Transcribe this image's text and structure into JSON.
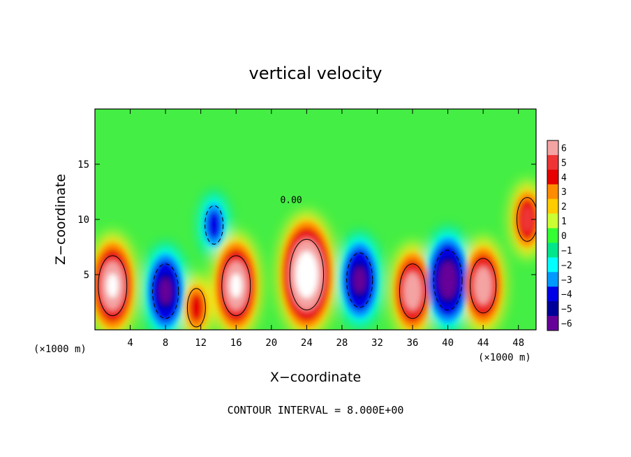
{
  "chart_data": {
    "type": "heatmap",
    "title": "vertical velocity",
    "xlabel": "X−coordinate",
    "ylabel": "Z−coordinate",
    "x_unit_left": "(×1000 m)",
    "x_unit_right": "(×1000 m)",
    "xlim": [
      0,
      50
    ],
    "ylim": [
      0,
      20
    ],
    "x_ticks": [
      4,
      8,
      12,
      16,
      20,
      24,
      28,
      32,
      36,
      40,
      44,
      48
    ],
    "y_ticks": [
      5,
      10,
      15
    ],
    "note": "CONTOUR INTERVAL = 8.000E+00",
    "contour_label": "0.00",
    "colorbar": {
      "levels": [
        "6",
        "5",
        "4",
        "3",
        "2",
        "1",
        "0",
        "−1",
        "−2",
        "−3",
        "−4",
        "−5",
        "−6"
      ],
      "range": [
        -6,
        6
      ],
      "colors": [
        "#f4a3a3",
        "#ee3434",
        "#e60000",
        "#ff8c00",
        "#ffcc00",
        "#ccff33",
        "#33ff33",
        "#00e68a",
        "#00ffff",
        "#0099ff",
        "#0000e6",
        "#000099",
        "#660099"
      ]
    },
    "features": [
      {
        "x": 2,
        "z": 4,
        "value": 8,
        "type": "updraft"
      },
      {
        "x": 8,
        "z": 3.5,
        "value": -7,
        "type": "downdraft"
      },
      {
        "x": 11.5,
        "z": 2,
        "value": 4,
        "type": "updraft"
      },
      {
        "x": 13.5,
        "z": 9.5,
        "value": -4,
        "type": "downdraft"
      },
      {
        "x": 16,
        "z": 4,
        "value": 8,
        "type": "updraft"
      },
      {
        "x": 24,
        "z": 5,
        "value": 10,
        "type": "updraft"
      },
      {
        "x": 30,
        "z": 4.5,
        "value": -7,
        "type": "downdraft"
      },
      {
        "x": 36,
        "z": 3.5,
        "value": 7,
        "type": "updraft"
      },
      {
        "x": 40,
        "z": 4.5,
        "value": -8,
        "type": "downdraft"
      },
      {
        "x": 44,
        "z": 4,
        "value": 7,
        "type": "updraft"
      },
      {
        "x": 49,
        "z": 10,
        "value": 5,
        "type": "updraft"
      }
    ]
  }
}
